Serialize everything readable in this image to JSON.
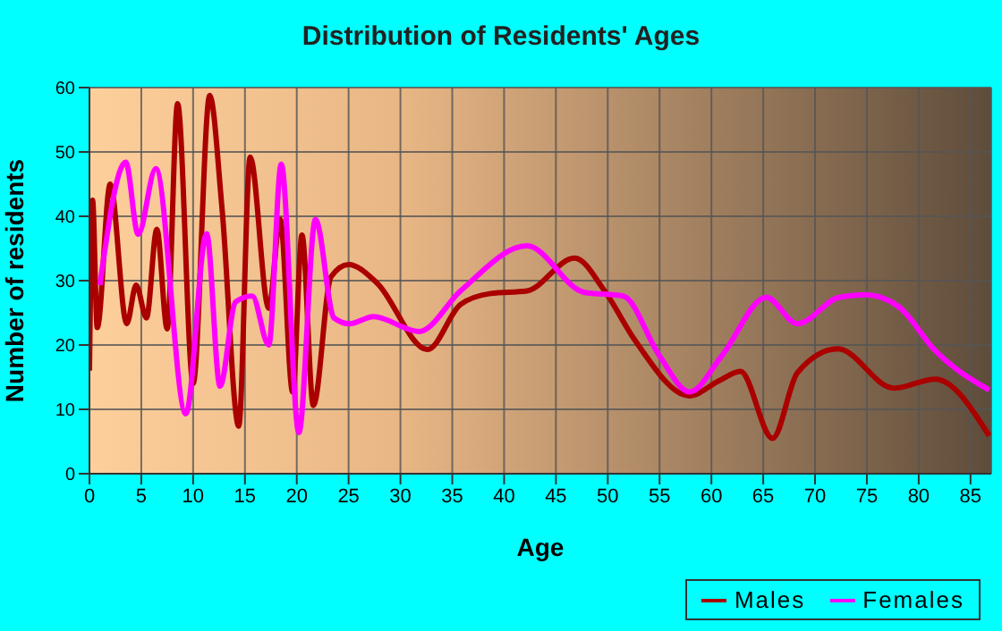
{
  "chart_data": {
    "type": "line",
    "title": "Distribution of Residents' Ages",
    "xlabel": "Age",
    "ylabel": "Number of residents",
    "xlim": [
      0,
      87
    ],
    "xticks": [
      0,
      5,
      10,
      15,
      20,
      25,
      30,
      35,
      40,
      45,
      50,
      55,
      60,
      65,
      70,
      75,
      80,
      85
    ],
    "ylim": [
      0,
      60
    ],
    "yticks": [
      0,
      10,
      20,
      30,
      40,
      50,
      60
    ],
    "grid": true,
    "legend": "bottom right",
    "marker": "none",
    "line_style": "solid",
    "series": [
      {
        "name": "Males",
        "color": "#aa0000",
        "x": [
          0,
          0.3,
          0.75,
          2,
          3.6,
          4.5,
          5.5,
          6.5,
          7.5,
          8.5,
          10,
          11.6,
          12.8,
          14.4,
          15.5,
          17.3,
          18.4,
          19.6,
          20.5,
          21.6,
          23.3,
          25,
          27.7,
          32.6,
          35.8,
          38.7,
          42.2,
          46.8,
          49.7,
          52.6,
          57.9,
          60.7,
          62.8,
          65.9,
          68.3,
          72.2,
          77.6,
          81.6,
          86.8
        ],
        "values": [
          16,
          42.5,
          22.7,
          45,
          23.3,
          29.3,
          24.2,
          38,
          22.5,
          57.5,
          14,
          58.8,
          41,
          7.4,
          49.2,
          25.7,
          39.5,
          12.7,
          37.1,
          10.6,
          30.6,
          32.5,
          29.7,
          19.3,
          26.3,
          28,
          28.4,
          33.5,
          28.4,
          20.8,
          12.1,
          14.4,
          15.9,
          5.5,
          15.7,
          19.4,
          13.3,
          14.7,
          5.9
        ]
      },
      {
        "name": "Females",
        "color": "#ff00ff",
        "x": [
          1,
          3.5,
          4.7,
          6.4,
          9.3,
          11.3,
          12.6,
          14.1,
          15.7,
          17.3,
          18.5,
          20.2,
          21.8,
          23.6,
          25.1,
          27.4,
          31.8,
          35.8,
          42.2,
          47.7,
          51.5,
          55,
          57.9,
          61,
          65.3,
          68.3,
          72.3,
          74.9,
          78.1,
          81.6,
          86.8
        ],
        "values": [
          29.3,
          48.4,
          37.2,
          47.4,
          9.3,
          37.3,
          13.6,
          26.7,
          27.6,
          20,
          48.1,
          6.4,
          39.5,
          24.2,
          23.3,
          24.4,
          22.1,
          28.4,
          35.4,
          28.2,
          27.6,
          18.3,
          12.7,
          18.3,
          27.4,
          23.3,
          27.4,
          27.8,
          25.9,
          19.1,
          13
        ]
      }
    ]
  }
}
